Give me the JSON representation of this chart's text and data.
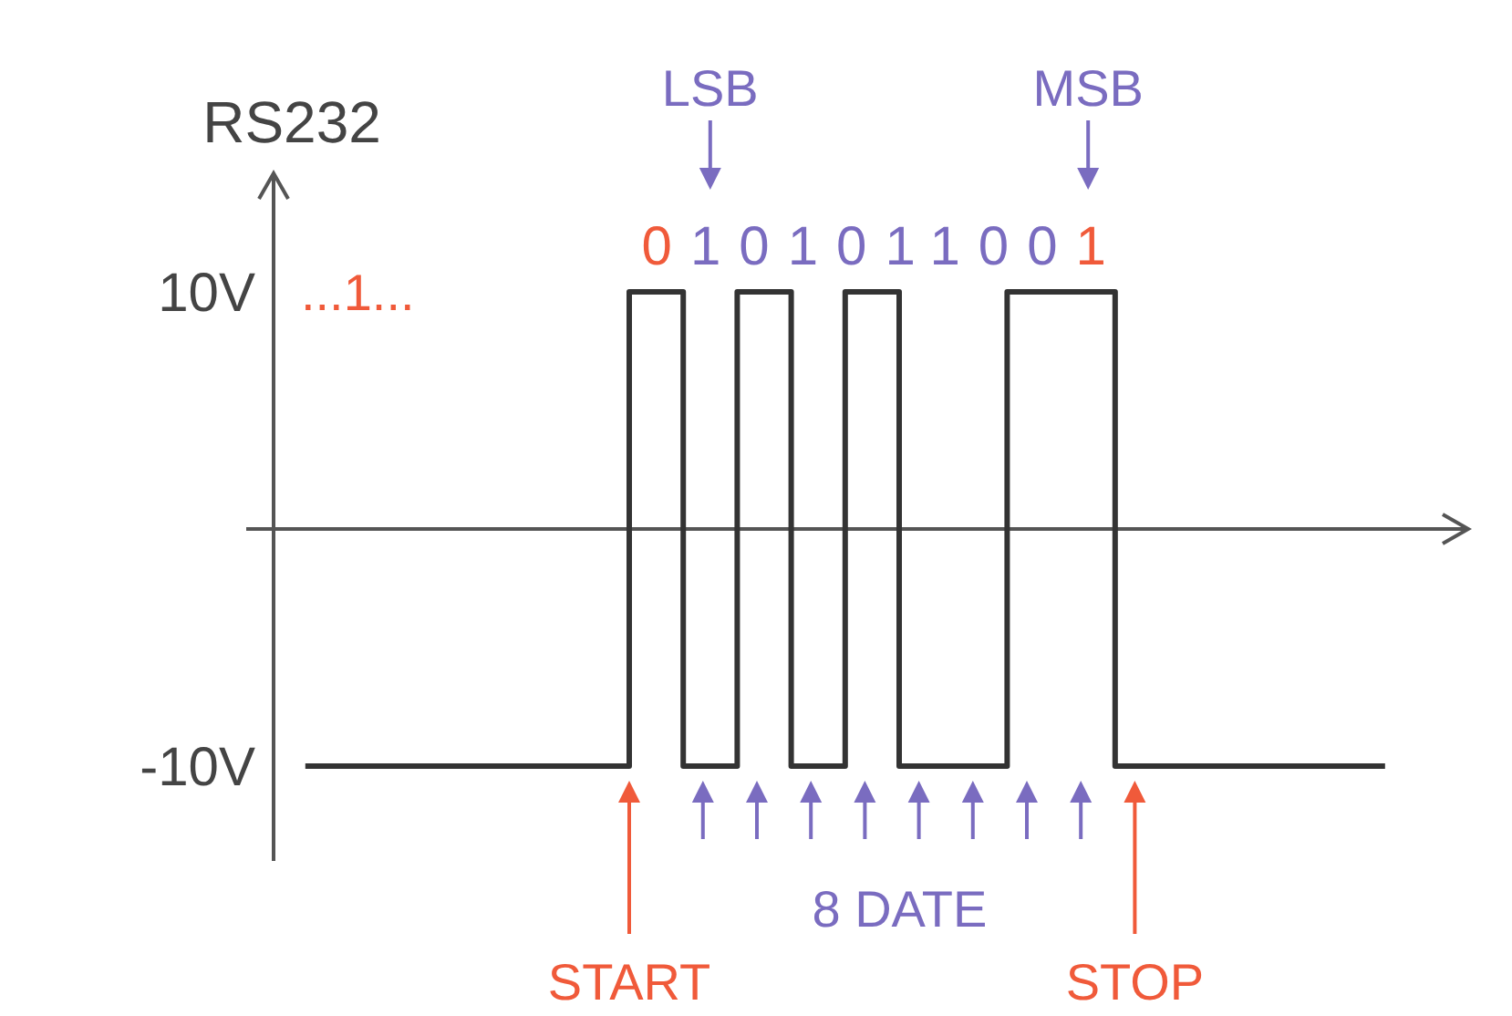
{
  "chart_data": {
    "type": "step",
    "ylabel": "RS232",
    "categories": [
      null,
      null,
      null,
      null,
      null,
      null,
      null,
      null,
      null,
      null,
      null,
      null,
      null,
      null,
      null,
      null,
      null,
      null,
      null,
      null,
      null
    ],
    "values": [
      -10,
      -10,
      -10,
      -10,
      -10,
      -10,
      10,
      -10,
      10,
      -10,
      10,
      -10,
      -10,
      10,
      10,
      -10,
      -10,
      -10,
      -10,
      -10,
      -10
    ],
    "color": "#333333",
    "ylim": [
      -14,
      15
    ],
    "yticks": [
      {
        "value": 10,
        "label": "10V"
      },
      {
        "value": -10,
        "label": "-10V"
      }
    ],
    "tick_labels": "y",
    "annotations": [
      "...1...",
      "0101011001",
      "LSB",
      "MSB",
      "START",
      "8 DATE",
      "STOP"
    ]
  }
}
